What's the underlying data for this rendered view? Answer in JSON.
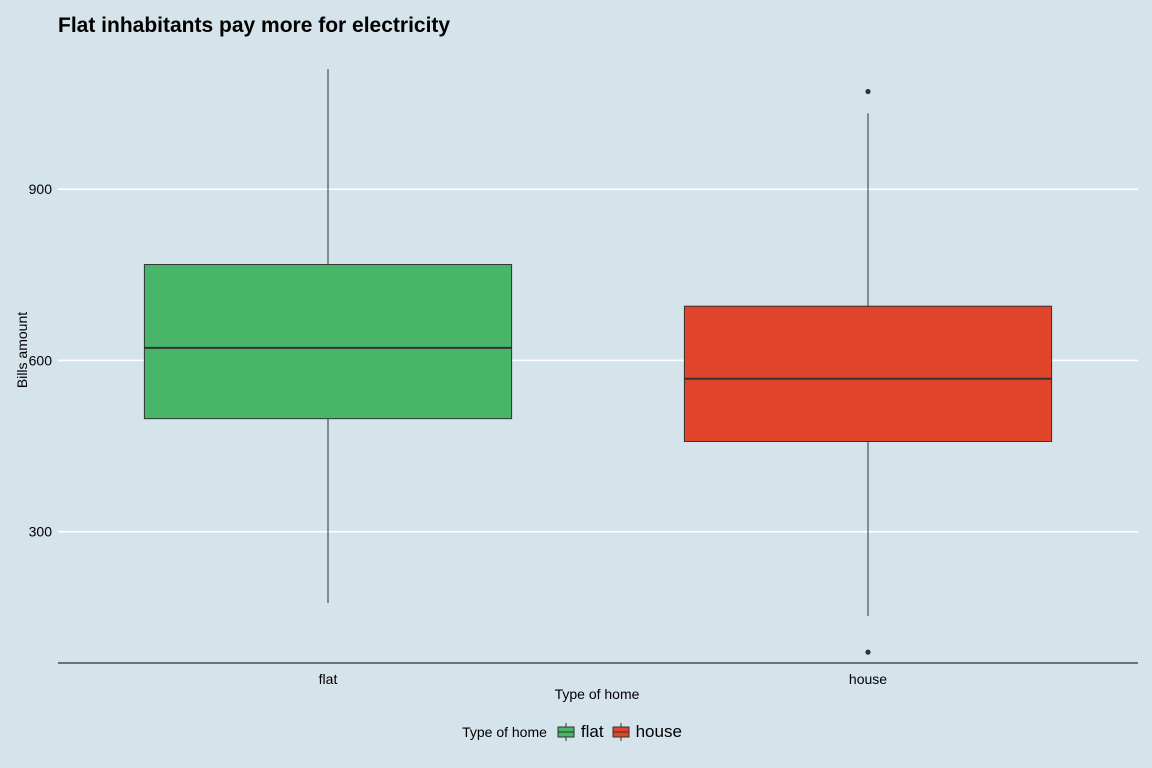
{
  "chart_data": {
    "type": "boxplot",
    "title": "Flat inhabitants pay more for electricity",
    "xlabel": "Type of home",
    "ylabel": "Bills amount",
    "ylim": [
      70,
      1135
    ],
    "yticks": [
      300,
      600,
      900
    ],
    "grid": "horizontal major only",
    "legend": {
      "title": "Type of home",
      "position": "bottom"
    },
    "categories": [
      "flat",
      "house"
    ],
    "boxes": [
      {
        "category": "flat",
        "color": "#48b569",
        "whisker_low": 175,
        "q1": 498,
        "median": 622,
        "q3": 768,
        "whisker_high": 1110,
        "outliers": []
      },
      {
        "category": "house",
        "color": "#e0442a",
        "whisker_low": 152,
        "q1": 458,
        "median": 568,
        "q3": 695,
        "whisker_high": 1033,
        "outliers": [
          1071,
          89
        ]
      }
    ]
  }
}
